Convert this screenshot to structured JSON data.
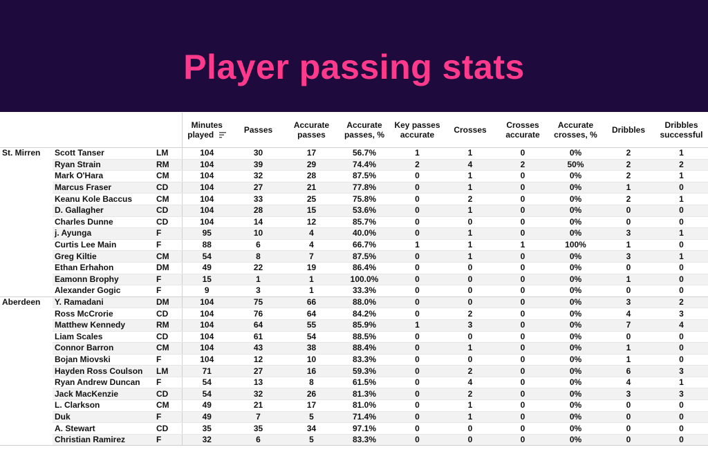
{
  "title": "Player passing stats",
  "colors": {
    "banner": "#1e0a3c",
    "title": "#ff3a8c",
    "row_stripe": "#f2f2f2"
  },
  "columns": [
    "Minutes played",
    "Passes",
    "Accurate passes",
    "Accurate passes, %",
    "Key passes accurate",
    "Crosses",
    "Crosses accurate",
    "Accurate crosses, %",
    "Dribbles",
    "Dribbles successful"
  ],
  "sort_icon": "sort-descending-icon",
  "teams": [
    {
      "name": "St. Mirren",
      "players": [
        [
          "Scott Tanser",
          "LM",
          "104",
          "30",
          "17",
          "56.7%",
          "1",
          "1",
          "0",
          "0%",
          "2",
          "1"
        ],
        [
          "Ryan Strain",
          "RM",
          "104",
          "39",
          "29",
          "74.4%",
          "2",
          "4",
          "2",
          "50%",
          "2",
          "2"
        ],
        [
          "Mark O'Hara",
          "CM",
          "104",
          "32",
          "28",
          "87.5%",
          "0",
          "1",
          "0",
          "0%",
          "2",
          "1"
        ],
        [
          "Marcus Fraser",
          "CD",
          "104",
          "27",
          "21",
          "77.8%",
          "0",
          "1",
          "0",
          "0%",
          "1",
          "0"
        ],
        [
          "Keanu Kole Baccus",
          "CM",
          "104",
          "33",
          "25",
          "75.8%",
          "0",
          "2",
          "0",
          "0%",
          "2",
          "1"
        ],
        [
          "D. Gallagher",
          "CD",
          "104",
          "28",
          "15",
          "53.6%",
          "0",
          "1",
          "0",
          "0%",
          "0",
          "0"
        ],
        [
          "Charles Dunne",
          "CD",
          "104",
          "14",
          "12",
          "85.7%",
          "0",
          "0",
          "0",
          "0%",
          "0",
          "0"
        ],
        [
          "j. Ayunga",
          "F",
          "95",
          "10",
          "4",
          "40.0%",
          "0",
          "1",
          "0",
          "0%",
          "3",
          "1"
        ],
        [
          "Curtis Lee Main",
          "F",
          "88",
          "6",
          "4",
          "66.7%",
          "1",
          "1",
          "1",
          "100%",
          "1",
          "0"
        ],
        [
          "Greg Kiltie",
          "CM",
          "54",
          "8",
          "7",
          "87.5%",
          "0",
          "1",
          "0",
          "0%",
          "3",
          "1"
        ],
        [
          "Ethan Erhahon",
          "DM",
          "49",
          "22",
          "19",
          "86.4%",
          "0",
          "0",
          "0",
          "0%",
          "0",
          "0"
        ],
        [
          "Eamonn Brophy",
          "F",
          "15",
          "1",
          "1",
          "100.0%",
          "0",
          "0",
          "0",
          "0%",
          "1",
          "0"
        ],
        [
          "Alexander Gogic",
          "F",
          "9",
          "3",
          "1",
          "33.3%",
          "0",
          "0",
          "0",
          "0%",
          "0",
          "0"
        ]
      ]
    },
    {
      "name": "Aberdeen",
      "players": [
        [
          "Y. Ramadani",
          "DM",
          "104",
          "75",
          "66",
          "88.0%",
          "0",
          "0",
          "0",
          "0%",
          "3",
          "2"
        ],
        [
          "Ross McCrorie",
          "CD",
          "104",
          "76",
          "64",
          "84.2%",
          "0",
          "2",
          "0",
          "0%",
          "4",
          "3"
        ],
        [
          "Matthew Kennedy",
          "RM",
          "104",
          "64",
          "55",
          "85.9%",
          "1",
          "3",
          "0",
          "0%",
          "7",
          "4"
        ],
        [
          "Liam Scales",
          "CD",
          "104",
          "61",
          "54",
          "88.5%",
          "0",
          "0",
          "0",
          "0%",
          "0",
          "0"
        ],
        [
          "Connor Barron",
          "CM",
          "104",
          "43",
          "38",
          "88.4%",
          "0",
          "1",
          "0",
          "0%",
          "1",
          "0"
        ],
        [
          "Bojan Miovski",
          "F",
          "104",
          "12",
          "10",
          "83.3%",
          "0",
          "0",
          "0",
          "0%",
          "1",
          "0"
        ],
        [
          "Hayden Ross Coulson",
          "LM",
          "71",
          "27",
          "16",
          "59.3%",
          "0",
          "2",
          "0",
          "0%",
          "6",
          "3"
        ],
        [
          "Ryan Andrew Duncan",
          "F",
          "54",
          "13",
          "8",
          "61.5%",
          "0",
          "4",
          "0",
          "0%",
          "4",
          "1"
        ],
        [
          "Jack MacKenzie",
          "CD",
          "54",
          "32",
          "26",
          "81.3%",
          "0",
          "2",
          "0",
          "0%",
          "3",
          "3"
        ],
        [
          "L. Clarkson",
          "CM",
          "49",
          "21",
          "17",
          "81.0%",
          "0",
          "1",
          "0",
          "0%",
          "0",
          "0"
        ],
        [
          "Duk",
          "F",
          "49",
          "7",
          "5",
          "71.4%",
          "0",
          "1",
          "0",
          "0%",
          "0",
          "0"
        ],
        [
          "A. Stewart",
          "CD",
          "35",
          "35",
          "34",
          "97.1%",
          "0",
          "0",
          "0",
          "0%",
          "0",
          "0"
        ],
        [
          "Christian Ramirez",
          "F",
          "32",
          "6",
          "5",
          "83.3%",
          "0",
          "0",
          "0",
          "0%",
          "0",
          "0"
        ]
      ]
    }
  ]
}
